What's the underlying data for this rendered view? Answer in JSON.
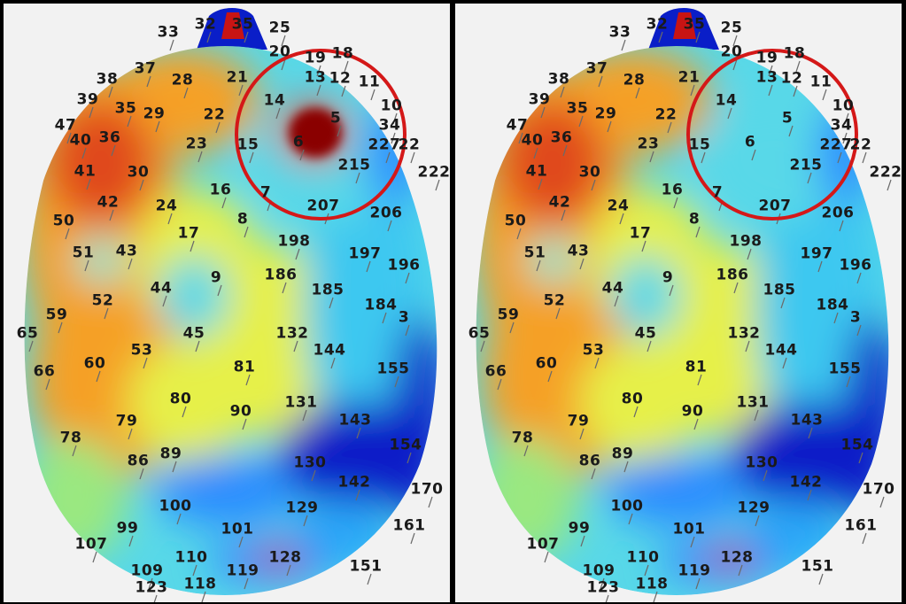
{
  "colors": {
    "background": "#000000",
    "panel": "#f2f2f2",
    "highlight_circle": "#d41818",
    "colormap": [
      "#0a1ec8",
      "#2a8cff",
      "#4fe0f0",
      "#e6f04a",
      "#f5a028",
      "#e04a1e",
      "#8a0000"
    ]
  },
  "panels": [
    {
      "id": "left",
      "hotspot_in_circle": true
    },
    {
      "id": "right",
      "hotspot_in_circle": false
    }
  ],
  "labels": [
    "33",
    "32",
    "35",
    "25",
    "20",
    "19",
    "18",
    "13",
    "12",
    "11",
    "10",
    "34",
    "38",
    "37",
    "28",
    "21",
    "14",
    "5",
    "6",
    "15",
    "22",
    "23",
    "29",
    "35",
    "36",
    "39",
    "47",
    "40",
    "41",
    "30",
    "16",
    "7",
    "207",
    "215",
    "206",
    "42",
    "24",
    "8",
    "17",
    "198",
    "197",
    "196",
    "50",
    "51",
    "43",
    "9",
    "186",
    "185",
    "184",
    "44",
    "52",
    "59",
    "45",
    "132",
    "144",
    "53",
    "65",
    "60",
    "81",
    "155",
    "66",
    "80",
    "131",
    "143",
    "90",
    "79",
    "78",
    "89",
    "86",
    "154",
    "130",
    "142",
    "100",
    "129",
    "99",
    "101",
    "128",
    "110",
    "119",
    "107",
    "109",
    "123",
    "118",
    "151",
    "161",
    "170",
    "3",
    "227",
    "22",
    "222"
  ]
}
